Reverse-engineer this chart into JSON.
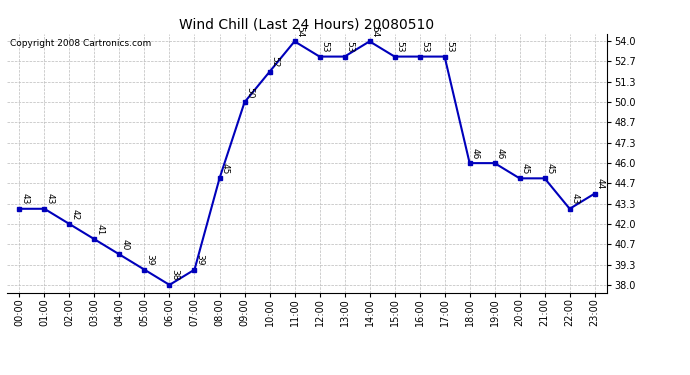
{
  "title": "Wind Chill (Last 24 Hours) 20080510",
  "copyright": "Copyright 2008 Cartronics.com",
  "hours": [
    0,
    1,
    2,
    3,
    4,
    5,
    6,
    7,
    8,
    9,
    10,
    11,
    12,
    13,
    14,
    15,
    16,
    17,
    18,
    19,
    20,
    21,
    22,
    23
  ],
  "values": [
    43,
    43,
    42,
    41,
    40,
    39,
    38,
    39,
    45,
    50,
    52,
    54,
    53,
    53,
    54,
    53,
    53,
    53,
    46,
    46,
    45,
    45,
    43,
    44
  ],
  "xlabels": [
    "00:00",
    "01:00",
    "02:00",
    "03:00",
    "04:00",
    "05:00",
    "06:00",
    "07:00",
    "08:00",
    "09:00",
    "10:00",
    "11:00",
    "12:00",
    "13:00",
    "14:00",
    "15:00",
    "16:00",
    "17:00",
    "18:00",
    "19:00",
    "20:00",
    "21:00",
    "22:00",
    "23:00"
  ],
  "yticks": [
    38.0,
    39.3,
    40.7,
    42.0,
    43.3,
    44.7,
    46.0,
    47.3,
    48.7,
    50.0,
    51.3,
    52.7,
    54.0
  ],
  "ylim": [
    37.5,
    54.5
  ],
  "line_color": "#0000bb",
  "marker_color": "#0000bb",
  "grid_color": "#bbbbbb",
  "bg_color": "#ffffff",
  "title_fontsize": 10,
  "label_fontsize": 7,
  "annotation_fontsize": 6.5,
  "copyright_fontsize": 6.5
}
